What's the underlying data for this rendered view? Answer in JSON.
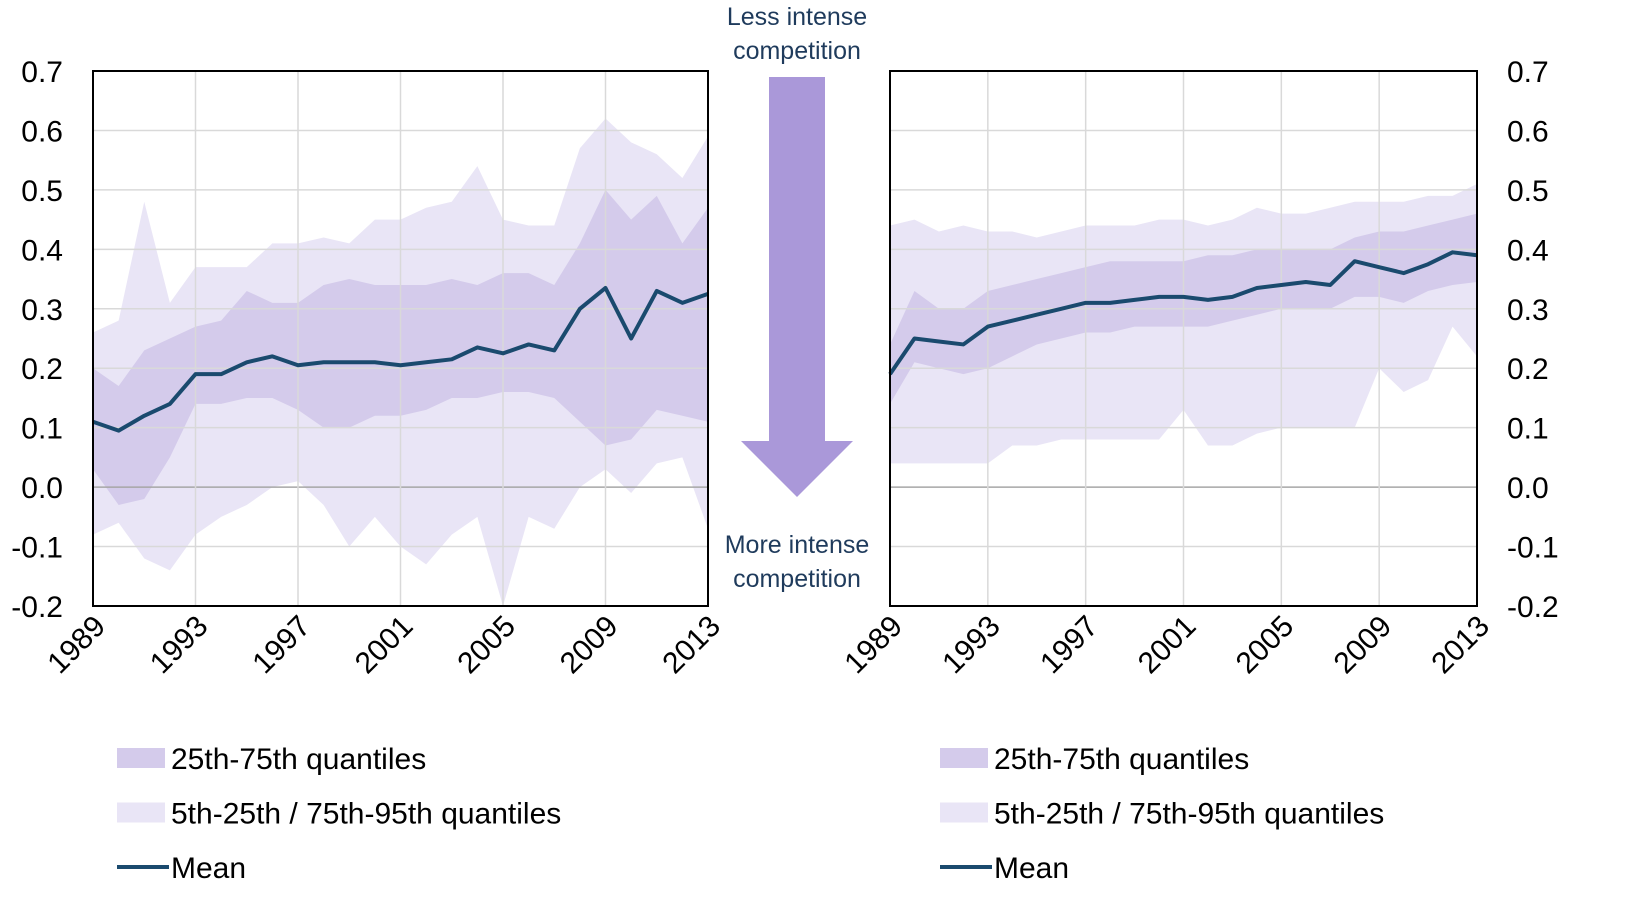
{
  "chart_data": [
    {
      "type": "line",
      "yaxis_side": "left",
      "x": [
        1989,
        1990,
        1991,
        1992,
        1993,
        1994,
        1995,
        1996,
        1997,
        1998,
        1999,
        2000,
        2001,
        2002,
        2003,
        2004,
        2005,
        2006,
        2007,
        2008,
        2009,
        2010,
        2011,
        2012,
        2013
      ],
      "xlim": [
        1989,
        2013
      ],
      "xticks": [
        1989,
        1993,
        1997,
        2001,
        2005,
        2009,
        2013
      ],
      "ylim": [
        -0.2,
        0.7
      ],
      "yticks": [
        0.7,
        0.6,
        0.5,
        0.4,
        0.3,
        0.2,
        0.1,
        {
          "value": 0,
          "label": "0.0"
        },
        -0.1,
        -0.2
      ],
      "grid": true,
      "series": [
        {
          "name": "25th-75th quantiles",
          "color": "#d4cbeb",
          "lower": [
            0.03,
            -0.03,
            -0.02,
            0.05,
            0.14,
            0.14,
            0.15,
            0.15,
            0.13,
            0.1,
            0.1,
            0.12,
            0.12,
            0.13,
            0.15,
            0.15,
            0.16,
            0.16,
            0.15,
            0.11,
            0.07,
            0.08,
            0.13,
            0.12,
            0.11
          ],
          "upper": [
            0.2,
            0.17,
            0.23,
            0.25,
            0.27,
            0.28,
            0.33,
            0.31,
            0.31,
            0.34,
            0.35,
            0.34,
            0.34,
            0.34,
            0.35,
            0.34,
            0.36,
            0.36,
            0.34,
            0.41,
            0.5,
            0.45,
            0.49,
            0.41,
            0.47
          ]
        },
        {
          "name": "5th-25th / 75th-95th quantiles",
          "color": "#e9e5f6",
          "lower": [
            -0.08,
            -0.06,
            -0.12,
            -0.14,
            -0.08,
            -0.05,
            -0.03,
            0,
            0.01,
            -0.03,
            -0.1,
            -0.05,
            -0.1,
            -0.13,
            -0.08,
            -0.05,
            -0.2,
            -0.05,
            -0.07,
            0,
            0.03,
            -0.01,
            0.04,
            0.05,
            -0.07
          ],
          "upper": [
            0.26,
            0.28,
            0.48,
            0.31,
            0.37,
            0.37,
            0.37,
            0.41,
            0.41,
            0.42,
            0.41,
            0.45,
            0.45,
            0.47,
            0.48,
            0.54,
            0.45,
            0.44,
            0.44,
            0.57,
            0.62,
            0.58,
            0.56,
            0.52,
            0.59
          ]
        },
        {
          "name": "Mean",
          "color": "#1a4a6e",
          "values": [
            0.11,
            0.095,
            0.12,
            0.14,
            0.19,
            0.19,
            0.21,
            0.22,
            0.205,
            0.21,
            0.21,
            0.21,
            0.205,
            0.21,
            0.215,
            0.235,
            0.225,
            0.24,
            0.23,
            0.3,
            0.335,
            0.25,
            0.33,
            0.31,
            0.325
          ]
        }
      ]
    },
    {
      "type": "line",
      "yaxis_side": "right",
      "x": [
        1989,
        1990,
        1991,
        1992,
        1993,
        1994,
        1995,
        1996,
        1997,
        1998,
        1999,
        2000,
        2001,
        2002,
        2003,
        2004,
        2005,
        2006,
        2007,
        2008,
        2009,
        2010,
        2011,
        2012,
        2013
      ],
      "xlim": [
        1989,
        2013
      ],
      "xticks": [
        1989,
        1993,
        1997,
        2001,
        2005,
        2009,
        2013
      ],
      "ylim": [
        -0.2,
        0.7
      ],
      "yticks": [
        0.7,
        0.6,
        0.5,
        0.4,
        0.3,
        0.2,
        0.1,
        {
          "value": 0,
          "label": "0.0"
        },
        -0.1,
        -0.2
      ],
      "grid": true,
      "series": [
        {
          "name": "25th-75th quantiles",
          "color": "#d4cbeb",
          "lower": [
            0.14,
            0.21,
            0.2,
            0.19,
            0.2,
            0.22,
            0.24,
            0.25,
            0.26,
            0.26,
            0.27,
            0.27,
            0.27,
            0.27,
            0.28,
            0.29,
            0.3,
            0.3,
            0.3,
            0.32,
            0.32,
            0.31,
            0.33,
            0.34,
            0.345
          ],
          "upper": [
            0.24,
            0.33,
            0.3,
            0.3,
            0.33,
            0.34,
            0.35,
            0.36,
            0.37,
            0.38,
            0.38,
            0.38,
            0.38,
            0.39,
            0.39,
            0.4,
            0.4,
            0.4,
            0.4,
            0.42,
            0.43,
            0.43,
            0.44,
            0.45,
            0.46
          ]
        },
        {
          "name": "5th-25th / 75th-95th quantiles",
          "color": "#e9e5f6",
          "lower": [
            0.04,
            0.04,
            0.04,
            0.04,
            0.04,
            0.07,
            0.07,
            0.08,
            0.08,
            0.08,
            0.08,
            0.08,
            0.13,
            0.07,
            0.07,
            0.09,
            0.1,
            0.1,
            0.1,
            0.1,
            0.2,
            0.16,
            0.18,
            0.27,
            0.22
          ],
          "upper": [
            0.44,
            0.45,
            0.43,
            0.44,
            0.43,
            0.43,
            0.42,
            0.43,
            0.44,
            0.44,
            0.44,
            0.45,
            0.45,
            0.44,
            0.45,
            0.47,
            0.46,
            0.46,
            0.47,
            0.48,
            0.48,
            0.48,
            0.49,
            0.49,
            0.51
          ]
        },
        {
          "name": "Mean",
          "color": "#1a4a6e",
          "values": [
            0.19,
            0.25,
            0.245,
            0.24,
            0.27,
            0.28,
            0.29,
            0.3,
            0.31,
            0.31,
            0.315,
            0.32,
            0.32,
            0.315,
            0.32,
            0.335,
            0.34,
            0.345,
            0.34,
            0.38,
            0.37,
            0.36,
            0.375,
            0.395,
            0.39
          ]
        }
      ]
    }
  ],
  "annotations": {
    "top": "Less intense competition",
    "bottom": "More intense competition"
  }
}
